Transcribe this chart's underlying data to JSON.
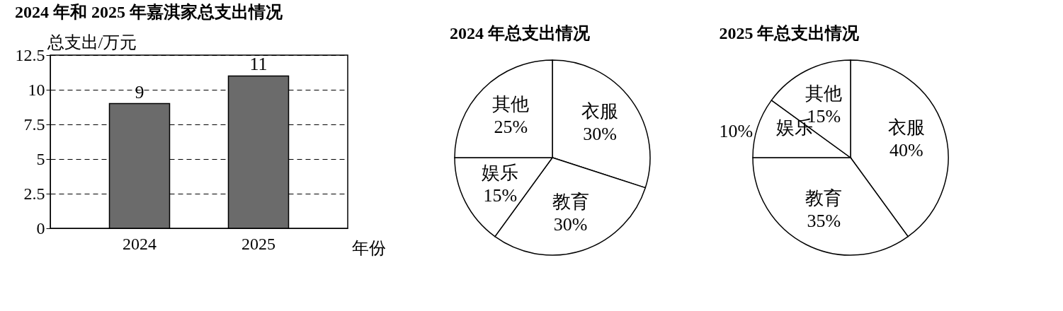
{
  "chart_data": [
    {
      "type": "bar",
      "title": "2024 年和 2025 年嘉淇家总支出情况",
      "categories": [
        "2024",
        "2025"
      ],
      "values": [
        9,
        11
      ],
      "color": "#6b6b6b",
      "ylim": [
        0,
        12.5
      ],
      "yticks": [
        0,
        2.5,
        5,
        7.5,
        10,
        12.5
      ],
      "grid": "y",
      "data_labels": true,
      "xlabel": "年份",
      "ylabel": "总支出/万元"
    },
    {
      "type": "pie",
      "title": "2024 年总支出情况",
      "categories": [
        "衣服",
        "教育",
        "娱乐",
        "其他"
      ],
      "values": [
        30,
        30,
        15,
        25
      ],
      "value_labels": [
        "30%",
        "30%",
        "15%",
        "25%"
      ],
      "colors": [
        "#ffffff",
        "#ffffff",
        "#ffffff",
        "#ffffff"
      ]
    },
    {
      "type": "pie",
      "title": "2025 年总支出情况",
      "categories": [
        "衣服",
        "教育",
        "娱乐",
        "其他"
      ],
      "values": [
        40,
        35,
        10,
        15
      ],
      "value_labels": [
        "40%",
        "35%",
        "10%",
        "15%"
      ],
      "colors": [
        "#ffffff",
        "#ffffff",
        "#ffffff",
        "#ffffff"
      ]
    }
  ]
}
